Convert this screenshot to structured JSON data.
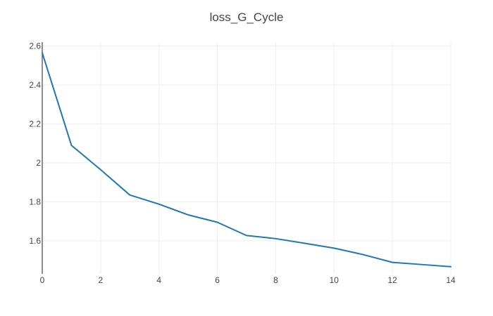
{
  "chart_data": {
    "type": "line",
    "title": "loss_G_Cycle",
    "xlabel": "",
    "ylabel": "",
    "xlim": [
      0,
      14
    ],
    "ylim": [
      1.43,
      2.62
    ],
    "x_ticks": [
      0,
      2,
      4,
      6,
      8,
      10,
      12,
      14
    ],
    "y_ticks": [
      1.6,
      1.8,
      2,
      2.2,
      2.4,
      2.6
    ],
    "x_tick_labels": [
      "0",
      "2",
      "4",
      "6",
      "8",
      "10",
      "12",
      "14"
    ],
    "y_tick_labels": [
      "1.6",
      "1.8",
      "2",
      "2.2",
      "2.4",
      "2.6"
    ],
    "grid": true,
    "legend": "none",
    "series": [
      {
        "color": "#1f77b4",
        "x": [
          0,
          1,
          2,
          3,
          4,
          5,
          6,
          7,
          8,
          9,
          10,
          11,
          12,
          13,
          14
        ],
        "y": [
          2.565,
          2.09,
          1.965,
          1.835,
          1.788,
          1.733,
          1.695,
          1.627,
          1.611,
          1.587,
          1.562,
          1.529,
          1.489,
          1.478,
          1.467
        ]
      }
    ]
  }
}
